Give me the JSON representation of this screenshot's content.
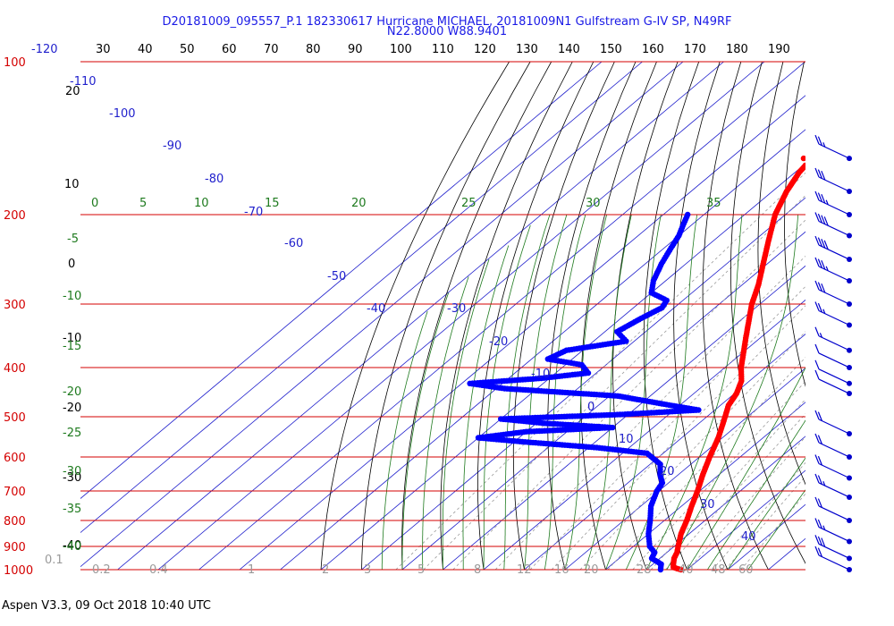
{
  "title_line1": "D20181009_095557_P.1 182330617 Hurricane MICHAEL, 20181009N1 Gulfstream G-IV SP, N49RF",
  "title_line2": "N22.8000 W88.9401",
  "footer": "Aspen V3.3, 09 Oct 2018  10:40 UTC",
  "colors": {
    "isobar": "#d40000",
    "isotherm": "#1f1fcc",
    "dry_adiabat": "#000000",
    "moist_adiabat": "#1e7a1e",
    "mixing_ratio": "#9a9a9a",
    "temperature": "#ff0000",
    "dewpoint": "#0000ff",
    "wind_barb": "#0000cc"
  },
  "chart_data": {
    "type": "skew-t",
    "y_axis": {
      "label_unit": "hPa",
      "scale": "log",
      "range": [
        1000,
        100
      ],
      "ticks": [
        "100",
        "200",
        "300",
        "400",
        "500",
        "600",
        "700",
        "800",
        "900",
        "1000"
      ]
    },
    "top_axis_ticks": [
      "-120",
      "30",
      "40",
      "50",
      "60",
      "70",
      "80",
      "90",
      "100",
      "110",
      "120",
      "130",
      "140",
      "150",
      "160",
      "170",
      "180",
      "190"
    ],
    "isotherm_labels": [
      "-110",
      "-100",
      "-90",
      "-80",
      "-70",
      "-60",
      "-50",
      "-40",
      "-30",
      "-20",
      "-10",
      "0",
      "10",
      "20",
      "30",
      "40"
    ],
    "dry_adiabat_labels": [
      "20",
      "10",
      "0",
      "-10",
      "-20",
      "-30",
      "-40"
    ],
    "moist_adiabat_labels": [
      "0",
      "5",
      "10",
      "15",
      "20",
      "25",
      "30",
      "35",
      "-5",
      "-10",
      "-15",
      "-20",
      "-25",
      "-30",
      "-35",
      "-40"
    ],
    "mixing_ratio_labels": [
      "0.1",
      "0.2",
      "0.4",
      "1",
      "2",
      "3",
      "5",
      "8",
      "12",
      "16",
      "20",
      "28",
      "40",
      "48",
      "60"
    ],
    "temperature_profile": [
      {
        "p": 1000,
        "t": 28.5
      },
      {
        "p": 990,
        "t": 26.0
      },
      {
        "p": 975,
        "t": 25.0
      },
      {
        "p": 950,
        "t": 23.5
      },
      {
        "p": 925,
        "t": 22.5
      },
      {
        "p": 900,
        "t": 21.0
      },
      {
        "p": 850,
        "t": 18.0
      },
      {
        "p": 800,
        "t": 15.5
      },
      {
        "p": 750,
        "t": 12.5
      },
      {
        "p": 700,
        "t": 9.5
      },
      {
        "p": 650,
        "t": 6.0
      },
      {
        "p": 600,
        "t": 2.5
      },
      {
        "p": 550,
        "t": -1.0
      },
      {
        "p": 500,
        "t": -5.5
      },
      {
        "p": 475,
        "t": -8.0
      },
      {
        "p": 450,
        "t": -9.5
      },
      {
        "p": 425,
        "t": -12.0
      },
      {
        "p": 400,
        "t": -16.0
      },
      {
        "p": 350,
        "t": -23.5
      },
      {
        "p": 300,
        "t": -32.0
      },
      {
        "p": 275,
        "t": -36.0
      },
      {
        "p": 250,
        "t": -41.0
      },
      {
        "p": 225,
        "t": -46.5
      },
      {
        "p": 200,
        "t": -52.5
      },
      {
        "p": 180,
        "t": -56.5
      },
      {
        "p": 165,
        "t": -59.0
      },
      {
        "p": 160,
        "t": -59.5
      }
    ],
    "temperature_top_point": {
      "p": 155,
      "t": -62.0
    },
    "dewpoint_profile": [
      {
        "p": 1000,
        "t": 23.5
      },
      {
        "p": 975,
        "t": 22.0
      },
      {
        "p": 950,
        "t": 18.0
      },
      {
        "p": 925,
        "t": 17.0
      },
      {
        "p": 900,
        "t": 14.0
      },
      {
        "p": 850,
        "t": 10.0
      },
      {
        "p": 800,
        "t": 6.5
      },
      {
        "p": 750,
        "t": 2.5
      },
      {
        "p": 700,
        "t": -0.5
      },
      {
        "p": 675,
        "t": -1.5
      },
      {
        "p": 650,
        "t": -4.5
      },
      {
        "p": 620,
        "t": -7.5
      },
      {
        "p": 590,
        "t": -14.0
      },
      {
        "p": 575,
        "t": -28.0
      },
      {
        "p": 560,
        "t": -48.0
      },
      {
        "p": 550,
        "t": -60.0
      },
      {
        "p": 535,
        "t": -50.0
      },
      {
        "p": 525,
        "t": -30.0
      },
      {
        "p": 515,
        "t": -48.0
      },
      {
        "p": 505,
        "t": -60.0
      },
      {
        "p": 495,
        "t": -32.0
      },
      {
        "p": 485,
        "t": -14.0
      },
      {
        "p": 475,
        "t": -22.0
      },
      {
        "p": 465,
        "t": -30.0
      },
      {
        "p": 455,
        "t": -38.0
      },
      {
        "p": 440,
        "t": -68.0
      },
      {
        "p": 430,
        "t": -78.0
      },
      {
        "p": 420,
        "t": -62.0
      },
      {
        "p": 410,
        "t": -52.0
      },
      {
        "p": 395,
        "t": -56.0
      },
      {
        "p": 385,
        "t": -66.0
      },
      {
        "p": 370,
        "t": -64.0
      },
      {
        "p": 355,
        "t": -52.0
      },
      {
        "p": 340,
        "t": -57.0
      },
      {
        "p": 320,
        "t": -55.0
      },
      {
        "p": 305,
        "t": -53.0
      },
      {
        "p": 295,
        "t": -54.0
      },
      {
        "p": 285,
        "t": -60.0
      },
      {
        "p": 270,
        "t": -63.0
      },
      {
        "p": 250,
        "t": -66.0
      },
      {
        "p": 235,
        "t": -68.0
      },
      {
        "p": 220,
        "t": -70.0
      },
      {
        "p": 210,
        "t": -72.0
      },
      {
        "p": 200,
        "t": -74.0
      }
    ],
    "wind_barbs": [
      {
        "p": 155,
        "speed": 25
      },
      {
        "p": 180,
        "speed": 30
      },
      {
        "p": 200,
        "speed": 35
      },
      {
        "p": 220,
        "speed": 40
      },
      {
        "p": 245,
        "speed": 40
      },
      {
        "p": 270,
        "speed": 35
      },
      {
        "p": 300,
        "speed": 30
      },
      {
        "p": 330,
        "speed": 25
      },
      {
        "p": 370,
        "speed": 15
      },
      {
        "p": 400,
        "speed": 10
      },
      {
        "p": 430,
        "speed": 10
      },
      {
        "p": 450,
        "speed": 10
      },
      {
        "p": 540,
        "speed": 20
      },
      {
        "p": 600,
        "speed": 20
      },
      {
        "p": 660,
        "speed": 20
      },
      {
        "p": 720,
        "speed": 25
      },
      {
        "p": 800,
        "speed": 20
      },
      {
        "p": 880,
        "speed": 25
      },
      {
        "p": 950,
        "speed": 30
      },
      {
        "p": 1000,
        "speed": 20
      }
    ]
  }
}
